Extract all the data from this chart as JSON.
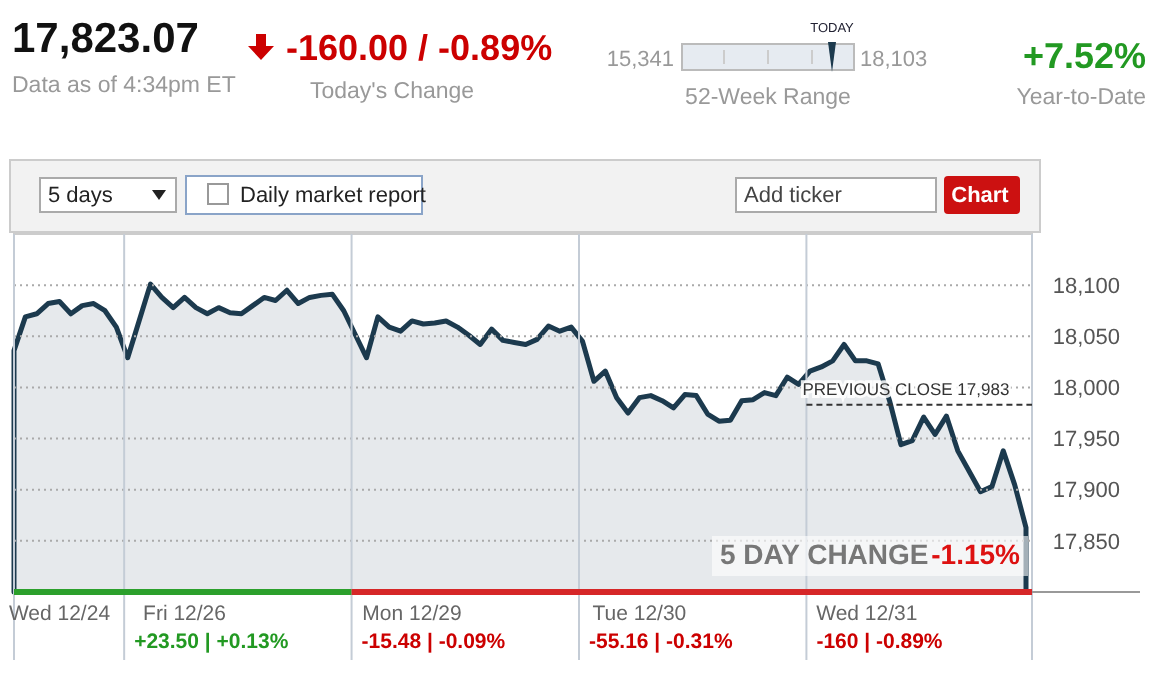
{
  "chart_data": {
    "type": "area",
    "ylim": [
      17800,
      18150
    ],
    "yticks": [
      {
        "value": 17850,
        "label": "17,850"
      },
      {
        "value": 17900,
        "label": "17,900"
      },
      {
        "value": 17950,
        "label": "17,950"
      },
      {
        "value": 18000,
        "label": "18,000"
      },
      {
        "value": 18050,
        "label": "18,050"
      },
      {
        "value": 18100,
        "label": "18,100"
      }
    ],
    "categories": [
      null,
      null,
      null,
      null,
      "Wed 12/24",
      null,
      null,
      null,
      null,
      null,
      null,
      null,
      null,
      null,
      null,
      "Fri 12/26",
      null,
      null,
      null,
      null,
      null,
      null,
      null,
      null,
      null,
      null,
      null,
      null,
      null,
      null,
      null,
      null,
      null,
      null,
      null,
      "Mon 12/29",
      null,
      null,
      null,
      null,
      null,
      null,
      null,
      null,
      null,
      null,
      null,
      null,
      null,
      null,
      null,
      null,
      null,
      null,
      null,
      "Tue 12/30",
      null,
      null,
      null,
      null,
      null,
      null,
      null,
      null,
      null,
      null,
      null,
      null,
      null,
      null,
      null,
      null,
      null,
      null,
      null,
      "Wed 12/31",
      null,
      null,
      null,
      null,
      null,
      null,
      null,
      null,
      null,
      null,
      null,
      null,
      null,
      null
    ],
    "grid": true,
    "series": [
      {
        "color": "#1c3a4e",
        "values": [
          18036,
          18069,
          18072,
          18082,
          18084,
          18072,
          18080,
          18082,
          18075,
          18059,
          18029,
          18065,
          18101,
          18088,
          18078,
          18088,
          18078,
          18072,
          18078,
          18073,
          18072,
          18080,
          18088,
          18085,
          18095,
          18082,
          18088,
          18090,
          18091,
          18075,
          18052,
          18029,
          18069,
          18059,
          18055,
          18065,
          18062,
          18063,
          18065,
          18059,
          18051,
          18042,
          18057,
          18046,
          18044,
          18042,
          18047,
          18060,
          18055,
          18059,
          18045,
          18006,
          18016,
          17990,
          17975,
          17990,
          17992,
          17987,
          17980,
          17993,
          17992,
          17974,
          17967,
          17968,
          17987,
          17988,
          17995,
          17992,
          18010,
          18003,
          18016,
          18020,
          18026,
          18042,
          18026,
          18026,
          18023,
          17987,
          17944,
          17948,
          17971,
          17954,
          17972,
          17938,
          17918,
          17898,
          17903,
          17938,
          17905,
          17863
        ]
      }
    ],
    "ref_lines": [
      {
        "axis": "y",
        "value": 17983,
        "label": "PREVIOUS CLOSE 17,983",
        "line_style": "dashed",
        "color": "#333333"
      }
    ],
    "annotations": [
      "17,823.07",
      "Data as of 4:34pm ET",
      "-160.00 / -0.89%",
      "Today's Change",
      "15,341",
      "18,103",
      "TODAY",
      "52-Week Range",
      "+7.52%",
      "Year-to-Date",
      "5 days",
      "Daily market report",
      "Add ticker",
      "Chart",
      "5 DAY CHANGE",
      "-1.15%",
      "+23.50 | +0.13%",
      "-15.48 | -0.09%",
      "-55.16 | -0.31%",
      "-160 | -0.89%"
    ]
  }
}
